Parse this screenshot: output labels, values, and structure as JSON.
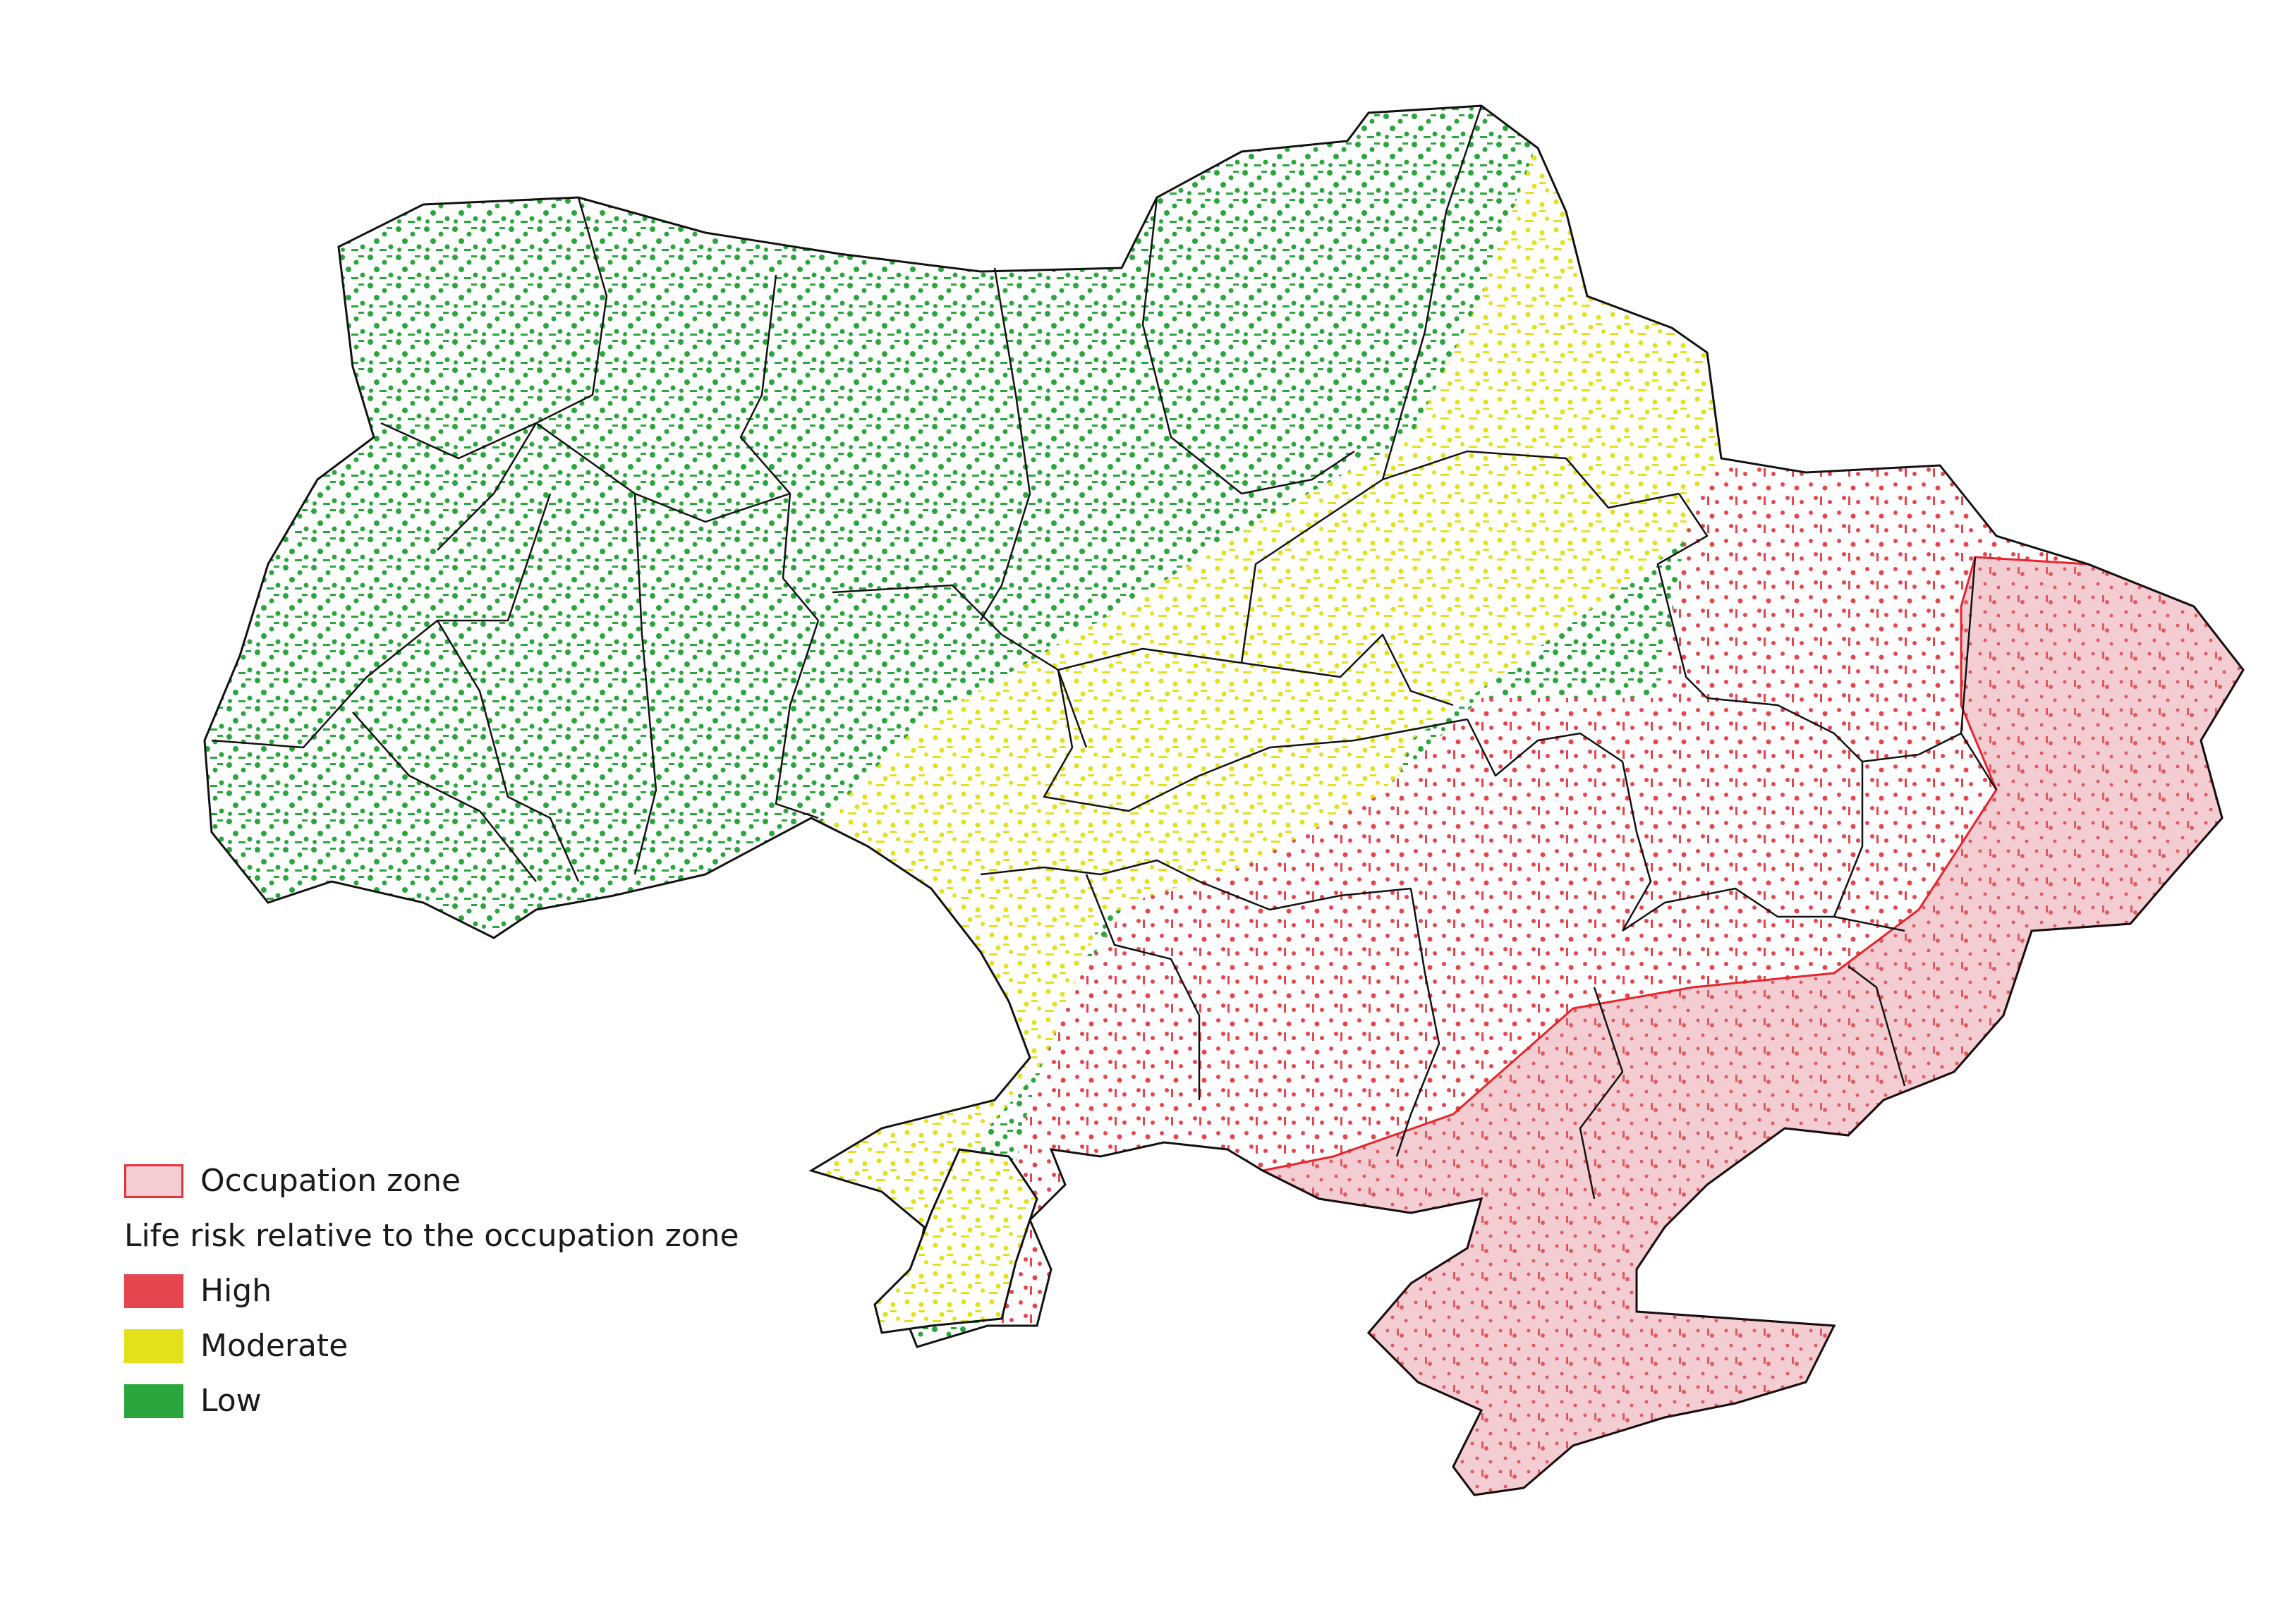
{
  "map": {
    "zone_colors": {
      "low": "#2ba63c",
      "moderate": "#e3e01c",
      "high": "#e5454c",
      "occupation_fill": "#f4cdd2",
      "occupation_border": "#e8232b",
      "region_border": "#111111"
    },
    "legend": {
      "occupation_label": "Occupation zone",
      "heading": "Life risk relative to the occupation zone",
      "items": [
        {
          "label": "High",
          "color": "#e5454c"
        },
        {
          "label": "Moderate",
          "color": "#e3e01c"
        },
        {
          "label": "Low",
          "color": "#2ba63c"
        }
      ]
    }
  }
}
